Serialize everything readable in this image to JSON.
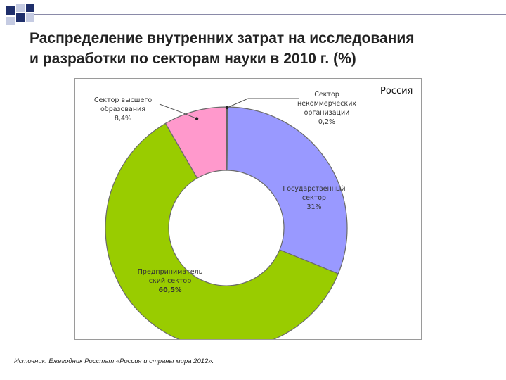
{
  "slide": {
    "title_line1": "Распределение внутренних затрат на исследования",
    "title_line2": "и разработки по секторам науки в 2010 г. (%)",
    "source": "Источник: Ежегодник Росстат «Россия и страны мира 2012».",
    "colors": {
      "deco_navy": "#1f2f6b",
      "deco_light": "#c5cbe2",
      "title_text": "#222222"
    }
  },
  "chart_data": {
    "type": "pie",
    "style": "donut",
    "title": "Россия",
    "series": [
      {
        "name": "Сектор некоммерческих организации",
        "name_lines": [
          "Сектор",
          "некоммерческих",
          "организации"
        ],
        "value": 0.2,
        "value_label": "0,2%",
        "color": "#5a5a5a"
      },
      {
        "name": "Государственный сектор",
        "name_lines": [
          "Государственный",
          "сектор"
        ],
        "value": 31,
        "value_label": "31%",
        "color": "#9999ff"
      },
      {
        "name": "Предпринимательский сектор",
        "name_lines": [
          "Предприниматель",
          "ский сектор"
        ],
        "value": 60.5,
        "value_label": "60,5%",
        "color": "#99cc00"
      },
      {
        "name": "Сектор высшего образования",
        "name_lines": [
          "Сектор высшего",
          "образования"
        ],
        "value": 8.4,
        "value_label": "8,4%",
        "color": "#ff99cc"
      }
    ]
  }
}
